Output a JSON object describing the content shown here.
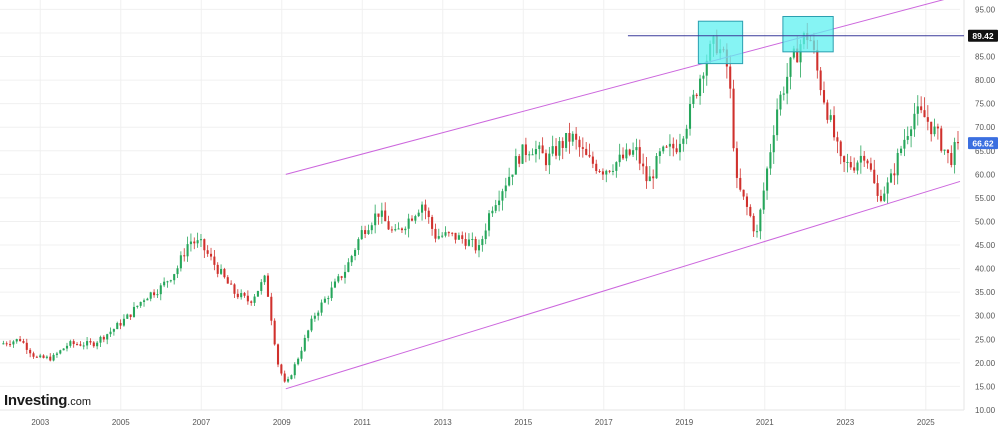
{
  "brand": {
    "name": "Investing",
    "suffix": ".com"
  },
  "colors": {
    "up": "#26a65b",
    "down": "#d0312d",
    "channel": "#cc66dd",
    "highlight_fill": "#5ef0f0",
    "highlight_stroke": "#2b9fb0",
    "level_line": "#3a3a9a",
    "level_label_bg": "#111111",
    "last_label_bg": "#3b6fe0",
    "grid": "#f0f0f0"
  },
  "chart_data": {
    "type": "candlestick",
    "timeframe": "monthly",
    "xlim": [
      2002.0,
      2025.85
    ],
    "ylim": [
      10,
      97
    ],
    "grid": true,
    "x_ticks": [
      "2003",
      "2005",
      "2007",
      "2009",
      "2011",
      "2013",
      "2015",
      "2017",
      "2019",
      "2021",
      "2023",
      "2025"
    ],
    "y_ticks": [
      "10.00",
      "15.00",
      "20.00",
      "25.00",
      "30.00",
      "35.00",
      "40.00",
      "45.00",
      "50.00",
      "55.00",
      "60.00",
      "65.00",
      "70.00",
      "75.00",
      "80.00",
      "85.00",
      "90.00",
      "95.00"
    ],
    "price_labels": [
      {
        "value": 89.42,
        "text": "89.42",
        "kind": "level"
      },
      {
        "value": 66.62,
        "text": "66.62",
        "kind": "last"
      }
    ],
    "horizontal_level": {
      "value": 89.42,
      "from": 2017.6
    },
    "channel_lines": [
      {
        "from": [
          2009.1,
          60.0
        ],
        "to": [
          2025.85,
          98.0
        ]
      },
      {
        "from": [
          2009.1,
          14.5
        ],
        "to": [
          2025.85,
          58.5
        ]
      }
    ],
    "highlight_boxes": [
      {
        "x": [
          2019.35,
          2020.45
        ],
        "y": [
          83.5,
          92.5
        ]
      },
      {
        "x": [
          2021.45,
          2022.7
        ],
        "y": [
          86.0,
          93.5
        ]
      }
    ],
    "anchors": [
      [
        2002.0,
        24
      ],
      [
        2002.5,
        25
      ],
      [
        2002.9,
        21
      ],
      [
        2003.3,
        21
      ],
      [
        2003.7,
        24
      ],
      [
        2004.3,
        24
      ],
      [
        2004.8,
        27
      ],
      [
        2005.2,
        30
      ],
      [
        2005.6,
        34
      ],
      [
        2006.0,
        36
      ],
      [
        2006.4,
        40
      ],
      [
        2006.7,
        46
      ],
      [
        2007.0,
        45
      ],
      [
        2007.4,
        40
      ],
      [
        2007.8,
        35
      ],
      [
        2008.2,
        33
      ],
      [
        2008.6,
        38
      ],
      [
        2008.9,
        20
      ],
      [
        2009.1,
        15
      ],
      [
        2009.4,
        21
      ],
      [
        2009.8,
        30
      ],
      [
        2010.2,
        35
      ],
      [
        2010.6,
        40
      ],
      [
        2011.0,
        48
      ],
      [
        2011.4,
        52
      ],
      [
        2011.8,
        47
      ],
      [
        2012.2,
        51
      ],
      [
        2012.5,
        54
      ],
      [
        2012.8,
        47
      ],
      [
        2013.2,
        47
      ],
      [
        2013.6,
        46
      ],
      [
        2013.9,
        44
      ],
      [
        2014.2,
        53
      ],
      [
        2014.6,
        59
      ],
      [
        2014.9,
        64
      ],
      [
        2015.2,
        66
      ],
      [
        2015.6,
        63
      ],
      [
        2015.9,
        66
      ],
      [
        2016.2,
        68
      ],
      [
        2016.6,
        63
      ],
      [
        2017.0,
        61
      ],
      [
        2017.4,
        63
      ],
      [
        2017.8,
        65
      ],
      [
        2018.1,
        58
      ],
      [
        2018.4,
        64
      ],
      [
        2018.8,
        66
      ],
      [
        2019.1,
        72
      ],
      [
        2019.5,
        84
      ],
      [
        2019.8,
        88
      ],
      [
        2020.1,
        82
      ],
      [
        2020.3,
        58
      ],
      [
        2020.6,
        52
      ],
      [
        2020.8,
        47
      ],
      [
        2021.0,
        58
      ],
      [
        2021.3,
        74
      ],
      [
        2021.6,
        82
      ],
      [
        2021.9,
        88
      ],
      [
        2022.1,
        90
      ],
      [
        2022.3,
        82
      ],
      [
        2022.6,
        72
      ],
      [
        2022.9,
        62
      ],
      [
        2023.2,
        62
      ],
      [
        2023.5,
        65
      ],
      [
        2023.8,
        55
      ],
      [
        2024.1,
        58
      ],
      [
        2024.4,
        66
      ],
      [
        2024.7,
        73
      ],
      [
        2025.0,
        72
      ],
      [
        2025.3,
        68
      ],
      [
        2025.6,
        63
      ],
      [
        2025.8,
        66.62
      ]
    ]
  }
}
